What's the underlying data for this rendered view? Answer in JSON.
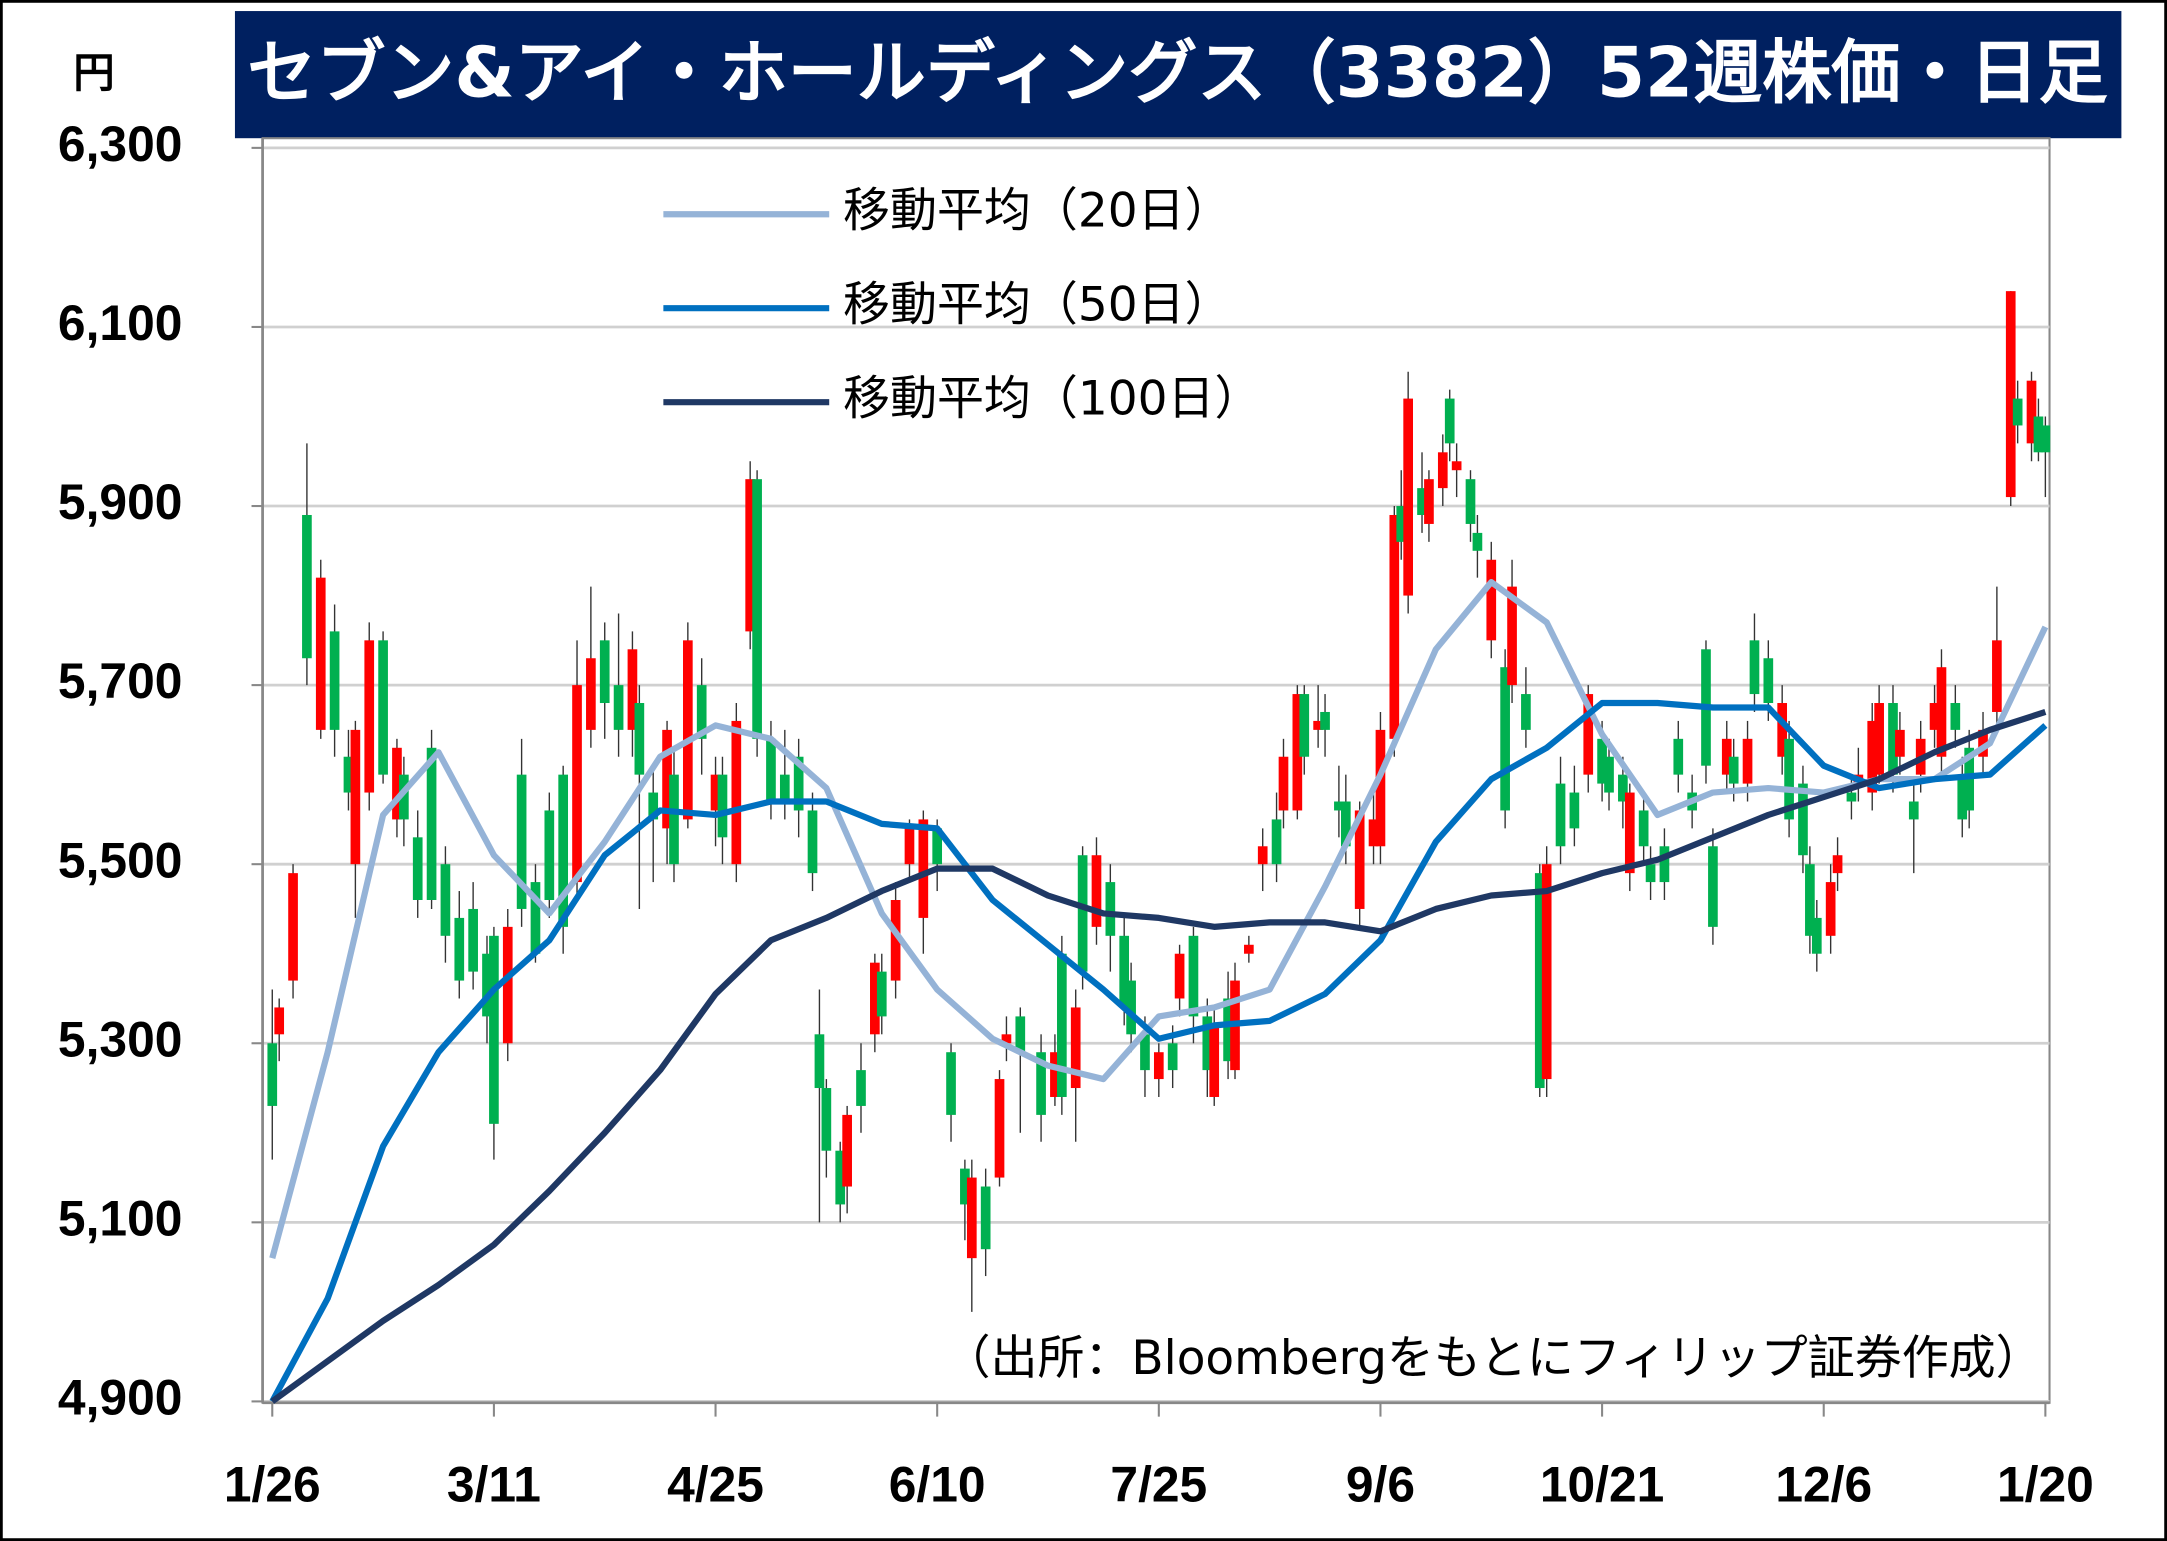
{
  "chart_data": {
    "type": "candlestick",
    "title": "セブン&アイ・ホールディングス（3382）52週株価・日足",
    "y_unit": "円",
    "source_note": "（出所：Bloombergをもとにフィリップ証券作成）",
    "up_color": "#ff0000",
    "down_color": "#00b050",
    "grid": true,
    "xlim": [
      -1,
      257
    ],
    "xticks": [
      {
        "value": 0,
        "label": "1/26"
      },
      {
        "value": 32,
        "label": "3/11"
      },
      {
        "value": 64,
        "label": "4/25"
      },
      {
        "value": 96,
        "label": "6/10"
      },
      {
        "value": 128,
        "label": "7/25"
      },
      {
        "value": 160,
        "label": "9/6"
      },
      {
        "value": 192,
        "label": "10/21"
      },
      {
        "value": 224,
        "label": "12/6"
      },
      {
        "value": 256,
        "label": "1/20"
      }
    ],
    "ylim": [
      4900,
      6300
    ],
    "yticks": [
      {
        "value": 4900,
        "label": "4,900"
      },
      {
        "value": 5100,
        "label": "5,100"
      },
      {
        "value": 5300,
        "label": "5,300"
      },
      {
        "value": 5500,
        "label": "5,500"
      },
      {
        "value": 5700,
        "label": "5,700"
      },
      {
        "value": 5900,
        "label": "5,900"
      },
      {
        "value": 6100,
        "label": "6,100"
      },
      {
        "value": 6300,
        "label": "6,300"
      }
    ],
    "x": [
      0,
      1,
      3,
      5,
      7,
      9,
      11,
      12,
      14,
      16,
      18,
      19,
      21,
      23,
      25,
      27,
      29,
      31,
      32,
      34,
      36,
      38,
      40,
      42,
      44,
      46,
      48,
      50,
      52,
      53,
      55,
      57,
      58,
      60,
      62,
      64,
      65,
      67,
      69,
      70,
      72,
      74,
      76,
      78,
      79,
      80,
      82,
      83,
      85,
      87,
      88,
      90,
      92,
      94,
      96,
      98,
      100,
      101,
      103,
      105,
      106,
      108,
      111,
      113,
      114,
      116,
      117,
      119,
      121,
      123,
      124,
      126,
      128,
      130,
      131,
      133,
      135,
      136,
      138,
      139,
      141,
      143,
      145,
      146,
      148,
      149,
      151,
      152,
      154,
      155,
      157,
      159,
      160,
      162,
      163,
      164,
      166,
      167,
      169,
      170,
      171,
      173,
      174,
      176,
      178,
      179,
      181,
      183,
      184,
      186,
      188,
      190,
      192,
      193,
      195,
      196,
      198,
      199,
      201,
      203,
      205,
      207,
      208,
      210,
      211,
      213,
      214,
      216,
      218,
      219,
      221,
      222,
      223,
      225,
      226,
      228,
      229,
      231,
      232,
      234,
      235,
      237,
      238,
      240,
      241,
      243,
      244,
      245,
      247,
      249,
      251,
      252,
      254,
      255,
      256
    ],
    "open": [
      5300,
      5310,
      5370,
      5890,
      5650,
      5760,
      5620,
      5500,
      5580,
      5750,
      5550,
      5600,
      5530,
      5630,
      5500,
      5440,
      5450,
      5400,
      5420,
      5300,
      5600,
      5480,
      5560,
      5600,
      5480,
      5650,
      5750,
      5700,
      5650,
      5680,
      5580,
      5540,
      5600,
      5550,
      5700,
      5560,
      5600,
      5500,
      5760,
      5930,
      5640,
      5600,
      5620,
      5560,
      5310,
      5250,
      5180,
      5140,
      5270,
      5310,
      5380,
      5370,
      5500,
      5440,
      5540,
      5290,
      5160,
      5060,
      5140,
      5150,
      5300,
      5330,
      5290,
      5240,
      5400,
      5250,
      5510,
      5430,
      5480,
      5420,
      5370,
      5310,
      5260,
      5300,
      5350,
      5420,
      5330,
      5240,
      5350,
      5270,
      5400,
      5500,
      5550,
      5560,
      5560,
      5690,
      5650,
      5670,
      5570,
      5570,
      5450,
      5520,
      5520,
      5640,
      5900,
      5800,
      5920,
      5880,
      5920,
      6020,
      5940,
      5930,
      5870,
      5750,
      5720,
      5700,
      5690,
      5490,
      5260,
      5590,
      5580,
      5600,
      5640,
      5620,
      5600,
      5490,
      5560,
      5500,
      5520,
      5640,
      5580,
      5740,
      5520,
      5600,
      5620,
      5590,
      5750,
      5730,
      5620,
      5640,
      5590,
      5500,
      5440,
      5420,
      5490,
      5580,
      5590,
      5580,
      5600,
      5680,
      5620,
      5570,
      5600,
      5650,
      5620,
      5680,
      5600,
      5630,
      5620,
      5670,
      5910,
      6020,
      5970,
      6000,
      5990
    ],
    "high": [
      5360,
      5350,
      5500,
      5970,
      5840,
      5790,
      5650,
      5660,
      5770,
      5760,
      5640,
      5620,
      5560,
      5650,
      5520,
      5470,
      5480,
      5420,
      5430,
      5450,
      5640,
      5500,
      5580,
      5610,
      5750,
      5810,
      5770,
      5780,
      5760,
      5700,
      5610,
      5660,
      5630,
      5770,
      5730,
      5620,
      5620,
      5680,
      5950,
      5940,
      5660,
      5650,
      5640,
      5580,
      5360,
      5260,
      5190,
      5230,
      5300,
      5400,
      5400,
      5480,
      5550,
      5560,
      5550,
      5300,
      5170,
      5170,
      5160,
      5270,
      5330,
      5340,
      5310,
      5310,
      5420,
      5360,
      5520,
      5530,
      5500,
      5440,
      5390,
      5330,
      5300,
      5320,
      5410,
      5430,
      5350,
      5340,
      5380,
      5390,
      5420,
      5540,
      5580,
      5640,
      5700,
      5700,
      5700,
      5690,
      5610,
      5600,
      5570,
      5580,
      5670,
      5900,
      5940,
      6050,
      5960,
      5940,
      5980,
      6030,
      5970,
      5940,
      5890,
      5860,
      5740,
      5840,
      5720,
      5500,
      5520,
      5620,
      5610,
      5700,
      5660,
      5640,
      5620,
      5590,
      5580,
      5520,
      5540,
      5660,
      5600,
      5750,
      5540,
      5660,
      5640,
      5660,
      5780,
      5750,
      5700,
      5660,
      5610,
      5520,
      5460,
      5500,
      5530,
      5600,
      5630,
      5680,
      5700,
      5700,
      5670,
      5590,
      5660,
      5700,
      5740,
      5700,
      5620,
      5650,
      5670,
      5810,
      6140,
      6040,
      6050,
      6020,
      6000
    ],
    "low": [
      5170,
      5280,
      5350,
      5700,
      5640,
      5620,
      5560,
      5440,
      5560,
      5590,
      5530,
      5520,
      5440,
      5450,
      5390,
      5350,
      5360,
      5300,
      5170,
      5280,
      5430,
      5390,
      5440,
      5400,
      5460,
      5630,
      5640,
      5620,
      5620,
      5450,
      5480,
      5500,
      5480,
      5540,
      5600,
      5520,
      5500,
      5480,
      5740,
      5620,
      5550,
      5550,
      5530,
      5470,
      5100,
      5150,
      5100,
      5110,
      5200,
      5290,
      5310,
      5350,
      5480,
      5400,
      5470,
      5190,
      5080,
      5000,
      5040,
      5140,
      5280,
      5200,
      5190,
      5230,
      5220,
      5190,
      5360,
      5410,
      5380,
      5320,
      5290,
      5240,
      5240,
      5250,
      5330,
      5300,
      5240,
      5230,
      5260,
      5260,
      5390,
      5470,
      5480,
      5540,
      5550,
      5600,
      5630,
      5620,
      5530,
      5500,
      5430,
      5500,
      5500,
      5620,
      5840,
      5780,
      5870,
      5860,
      5900,
      5950,
      5910,
      5860,
      5820,
      5730,
      5540,
      5680,
      5630,
      5240,
      5240,
      5500,
      5520,
      5580,
      5570,
      5560,
      5540,
      5470,
      5500,
      5460,
      5460,
      5580,
      5540,
      5590,
      5410,
      5580,
      5570,
      5570,
      5670,
      5660,
      5600,
      5530,
      5490,
      5400,
      5380,
      5400,
      5470,
      5550,
      5570,
      5560,
      5590,
      5580,
      5600,
      5490,
      5580,
      5630,
      5600,
      5630,
      5530,
      5540,
      5600,
      5650,
      5900,
      5970,
      5950,
      5950,
      5910
    ],
    "close": [
      5230,
      5340,
      5490,
      5730,
      5820,
      5650,
      5580,
      5650,
      5750,
      5600,
      5630,
      5550,
      5460,
      5460,
      5420,
      5370,
      5380,
      5330,
      5210,
      5430,
      5450,
      5400,
      5460,
      5430,
      5700,
      5730,
      5680,
      5650,
      5740,
      5600,
      5550,
      5650,
      5500,
      5750,
      5640,
      5600,
      5530,
      5660,
      5930,
      5640,
      5570,
      5570,
      5560,
      5490,
      5250,
      5180,
      5120,
      5220,
      5230,
      5390,
      5330,
      5460,
      5540,
      5550,
      5500,
      5220,
      5120,
      5150,
      5070,
      5260,
      5310,
      5290,
      5220,
      5290,
      5240,
      5340,
      5380,
      5510,
      5420,
      5340,
      5310,
      5270,
      5290,
      5270,
      5400,
      5330,
      5270,
      5320,
      5280,
      5370,
      5410,
      5520,
      5500,
      5620,
      5690,
      5620,
      5660,
      5650,
      5560,
      5520,
      5560,
      5550,
      5650,
      5890,
      5860,
      6020,
      5890,
      5930,
      5960,
      5970,
      5950,
      5880,
      5850,
      5840,
      5560,
      5810,
      5650,
      5250,
      5500,
      5520,
      5540,
      5690,
      5590,
      5580,
      5570,
      5580,
      5520,
      5480,
      5480,
      5600,
      5560,
      5610,
      5430,
      5640,
      5590,
      5640,
      5690,
      5680,
      5680,
      5550,
      5510,
      5420,
      5400,
      5480,
      5510,
      5570,
      5600,
      5660,
      5680,
      5600,
      5650,
      5550,
      5640,
      5680,
      5720,
      5650,
      5550,
      5560,
      5650,
      5750,
      6140,
      5990,
      6040,
      5960,
      5960
    ],
    "series": [
      {
        "name": "移動平均（20日）",
        "color": "#95b3d7",
        "x": [
          0,
          8,
          16,
          24,
          32,
          40,
          48,
          56,
          64,
          72,
          80,
          88,
          96,
          104,
          112,
          120,
          128,
          136,
          144,
          152,
          160,
          168,
          176,
          184,
          192,
          200,
          208,
          216,
          224,
          232,
          240,
          248,
          256
        ],
        "values": [
          5060,
          5290,
          5555,
          5625,
          5510,
          5445,
          5525,
          5620,
          5655,
          5640,
          5585,
          5445,
          5360,
          5305,
          5275,
          5260,
          5330,
          5340,
          5360,
          5475,
          5600,
          5740,
          5815,
          5770,
          5645,
          5555,
          5580,
          5585,
          5580,
          5595,
          5595,
          5635,
          5765
        ]
      },
      {
        "name": "移動平均（50日）",
        "color": "#0070c0",
        "x": [
          0,
          8,
          16,
          24,
          32,
          40,
          48,
          56,
          64,
          72,
          80,
          88,
          96,
          104,
          112,
          120,
          128,
          136,
          144,
          152,
          160,
          168,
          176,
          184,
          192,
          200,
          208,
          216,
          224,
          232,
          240,
          248,
          256
        ],
        "values": [
          4900,
          5015,
          5185,
          5290,
          5360,
          5415,
          5510,
          5560,
          5555,
          5570,
          5570,
          5545,
          5540,
          5460,
          5410,
          5360,
          5305,
          5320,
          5325,
          5355,
          5415,
          5525,
          5595,
          5630,
          5680,
          5680,
          5675,
          5675,
          5610,
          5585,
          5595,
          5600,
          5655
        ]
      },
      {
        "name": "移動平均（100日）",
        "color": "#1f3864",
        "x": [
          0,
          8,
          16,
          24,
          32,
          40,
          48,
          56,
          64,
          72,
          80,
          88,
          96,
          104,
          112,
          120,
          128,
          136,
          144,
          152,
          160,
          168,
          176,
          184,
          192,
          200,
          208,
          216,
          224,
          232,
          240,
          248,
          256
        ],
        "values": [
          4900,
          4945,
          4990,
          5030,
          5075,
          5135,
          5200,
          5270,
          5355,
          5415,
          5440,
          5470,
          5495,
          5495,
          5465,
          5445,
          5440,
          5430,
          5435,
          5435,
          5425,
          5450,
          5465,
          5470,
          5490,
          5505,
          5530,
          5555,
          5575,
          5595,
          5625,
          5650,
          5670
        ]
      }
    ]
  }
}
